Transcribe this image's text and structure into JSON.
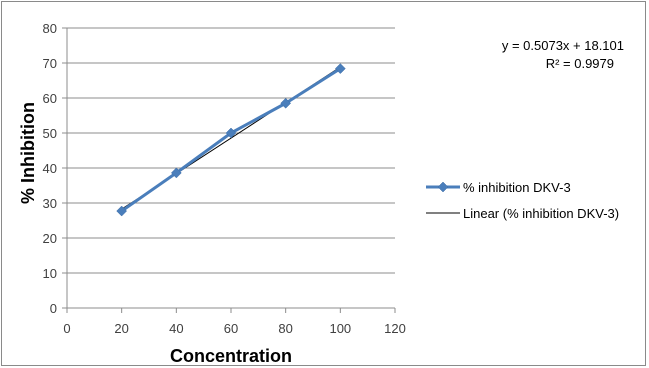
{
  "chart_data": {
    "type": "line",
    "title": "",
    "xlabel": "Concentration",
    "ylabel": "% Inhibition",
    "xlim": [
      0,
      120
    ],
    "ylim": [
      0,
      80
    ],
    "xticks": [
      0,
      20,
      40,
      60,
      80,
      100,
      120
    ],
    "yticks": [
      0,
      10,
      20,
      30,
      40,
      50,
      60,
      70,
      80
    ],
    "grid": "horizontal",
    "legend": "right",
    "series": [
      {
        "name": "% inhibition DKV-3",
        "color": "#4a7ebb",
        "marker": "diamond",
        "x": [
          20,
          40,
          60,
          80,
          100
        ],
        "y": [
          27.7,
          38.6,
          50.0,
          58.5,
          68.4
        ]
      }
    ],
    "trendline": {
      "name": "Linear (% inhibition DKV-3)",
      "color": "#000000",
      "slope": 0.5073,
      "intercept": 18.101,
      "x_range": [
        20,
        100
      ],
      "equation": "y = 0.5073x + 18.101",
      "r_squared": "R² = 0.9979"
    }
  }
}
